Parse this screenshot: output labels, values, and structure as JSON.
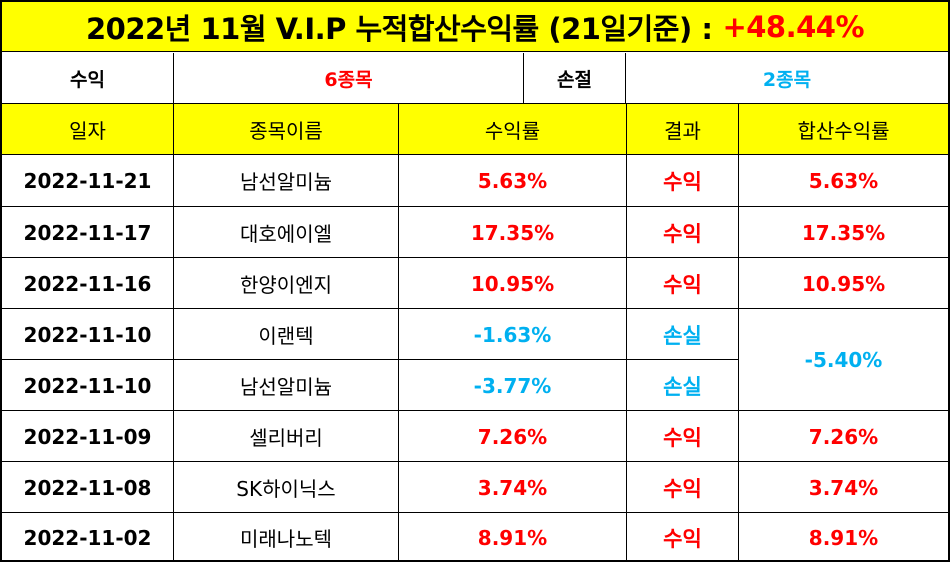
{
  "title": {
    "text": "2022년 11월 V.I.P 누적합산수익률 (21일기준) :",
    "value": "+48.44%"
  },
  "summary": {
    "profit_label": "수익",
    "profit_value": "6종목",
    "loss_label": "손절",
    "loss_value": "2종목"
  },
  "headers": {
    "date": "일자",
    "name": "종목이름",
    "return": "수익률",
    "result": "결과",
    "cumulative": "합산수익률"
  },
  "rows": [
    {
      "date": "2022-11-21",
      "name": "남선알미늄",
      "return": "5.63%",
      "result": "수익",
      "cumulative": "5.63%"
    },
    {
      "date": "2022-11-17",
      "name": "대호에이엘",
      "return": "17.35%",
      "result": "수익",
      "cumulative": "17.35%"
    },
    {
      "date": "2022-11-16",
      "name": "한양이엔지",
      "return": "10.95%",
      "result": "수익",
      "cumulative": "10.95%"
    },
    {
      "date": "2022-11-10",
      "name": "이랜텍",
      "return": "-1.63%",
      "result": "손실",
      "cumulative": "-5.40%"
    },
    {
      "date": "2022-11-10",
      "name": "남선알미늄",
      "return": "-3.77%",
      "result": "손실",
      "cumulative": ""
    },
    {
      "date": "2022-11-09",
      "name": "셀리버리",
      "return": "7.26%",
      "result": "수익",
      "cumulative": "7.26%"
    },
    {
      "date": "2022-11-08",
      "name": "SK하이닉스",
      "return": "3.74%",
      "result": "수익",
      "cumulative": "3.74%"
    },
    {
      "date": "2022-11-02",
      "name": "미래나노텍",
      "return": "8.91%",
      "result": "수익",
      "cumulative": "8.91%"
    }
  ],
  "colors": {
    "header_bg": "#ffff00",
    "profit": "#ff0000",
    "loss": "#00b0f0"
  }
}
